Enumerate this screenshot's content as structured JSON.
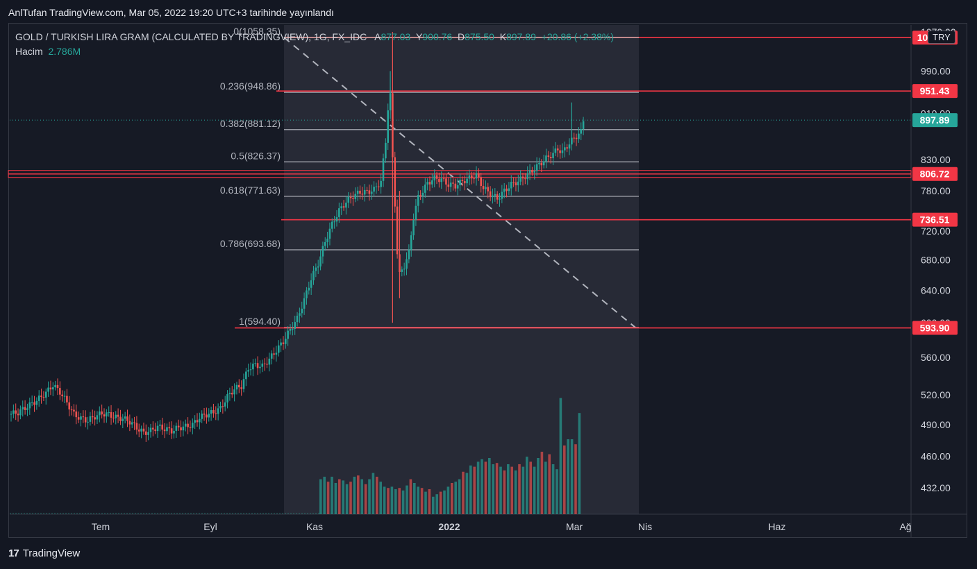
{
  "header": {
    "published_line": "AnlTufan TradingView.com, Mar 05, 2022 19:20 UTC+3 tarihinde yayınlandı"
  },
  "legend": {
    "symbol": "GOLD / TURKISH LIRA GRAM (CALCULATED BY TRADINGVIEW), 1G, FX_IDC",
    "o_label": "A",
    "o_val": "877.03",
    "h_label": "Y",
    "h_val": "900.76",
    "l_label": "D",
    "l_val": "875.50",
    "c_label": "K",
    "c_val": "897.89",
    "change": "+20.86 (+2.38%)",
    "volume_label": "Hacim",
    "volume_val": "2.786M"
  },
  "currency_badge": "TRY",
  "brand": {
    "logo": "17",
    "name": "TradingView"
  },
  "colors": {
    "bg": "#131722",
    "up": "#26a69a",
    "down": "#ef5350",
    "level_red": "#f23645",
    "fib_line": "#9598a1",
    "highlight": "#2a2e39"
  },
  "chart_data": {
    "type": "candlestick",
    "y_scale": "log",
    "ylim": [
      410,
      1085
    ],
    "y_ticks": [
      "432.00",
      "460.00",
      "490.00",
      "520.00",
      "560.00",
      "600.00",
      "640.00",
      "680.00",
      "720.00",
      "780.00",
      "830.00",
      "910.00",
      "990.00",
      "1070.00"
    ],
    "x_ticks": [
      {
        "label": "Tem",
        "bold": false
      },
      {
        "label": "Eyl",
        "bold": false
      },
      {
        "label": "Kas",
        "bold": false
      },
      {
        "label": "2022",
        "bold": true
      },
      {
        "label": "Mar",
        "bold": false
      },
      {
        "label": "Nis",
        "bold": false
      },
      {
        "label": "Haz",
        "bold": false
      },
      {
        "label": "Ağ",
        "bold": false
      }
    ],
    "last_price": "897.89",
    "horizontal_levels": [
      "1058.04",
      "951.43",
      "806.72",
      "736.51",
      "593.90"
    ],
    "fibonacci": [
      {
        "ratio": "0",
        "price": "1058.35",
        "label": "0(1058.35)"
      },
      {
        "ratio": "0.236",
        "price": "948.86",
        "label": "0.236(948.86)"
      },
      {
        "ratio": "0.382",
        "price": "881.12",
        "label": "0.382(881.12)"
      },
      {
        "ratio": "0.5",
        "price": "826.37",
        "label": "0.5(826.37)"
      },
      {
        "ratio": "0.618",
        "price": "771.63",
        "label": "0.618(771.63)"
      },
      {
        "ratio": "0.786",
        "price": "693.68",
        "label": "0.786(693.68)"
      },
      {
        "ratio": "1",
        "price": "594.40",
        "label": "1(594.40)"
      }
    ],
    "price_path": [
      [
        0,
        500
      ],
      [
        4,
        502
      ],
      [
        8,
        508
      ],
      [
        12,
        514
      ],
      [
        16,
        522
      ],
      [
        19,
        530
      ],
      [
        22,
        523
      ],
      [
        25,
        512
      ],
      [
        28,
        500
      ],
      [
        31,
        496
      ],
      [
        34,
        494
      ],
      [
        37,
        498
      ],
      [
        40,
        501
      ],
      [
        43,
        500
      ],
      [
        46,
        497
      ],
      [
        49,
        496
      ],
      [
        52,
        493
      ],
      [
        55,
        487
      ],
      [
        58,
        482
      ],
      [
        61,
        484
      ],
      [
        64,
        488
      ],
      [
        67,
        486
      ],
      [
        70,
        484
      ],
      [
        73,
        487
      ],
      [
        76,
        488
      ],
      [
        79,
        490
      ],
      [
        82,
        497
      ],
      [
        85,
        500
      ],
      [
        88,
        502
      ],
      [
        91,
        506
      ],
      [
        94,
        518
      ],
      [
        97,
        526
      ],
      [
        100,
        529
      ],
      [
        103,
        548
      ],
      [
        106,
        552
      ],
      [
        109,
        550
      ],
      [
        112,
        558
      ],
      [
        115,
        568
      ],
      [
        118,
        578
      ],
      [
        121,
        592
      ],
      [
        124,
        605
      ],
      [
        127,
        628
      ],
      [
        130,
        655
      ],
      [
        133,
        675
      ],
      [
        136,
        705
      ],
      [
        139,
        730
      ],
      [
        142,
        750
      ],
      [
        145,
        763
      ],
      [
        148,
        772
      ],
      [
        151,
        778
      ],
      [
        154,
        778
      ],
      [
        157,
        782
      ],
      [
        160,
        795
      ],
      [
        162,
        860
      ],
      [
        163,
        920
      ],
      [
        164,
        944
      ],
      [
        165,
        830
      ],
      [
        166,
        760
      ],
      [
        167,
        690
      ],
      [
        168,
        660
      ],
      [
        170,
        672
      ],
      [
        172,
        690
      ],
      [
        174,
        740
      ],
      [
        176,
        770
      ],
      [
        178,
        780
      ],
      [
        180,
        792
      ],
      [
        183,
        800
      ],
      [
        186,
        798
      ],
      [
        189,
        790
      ],
      [
        192,
        788
      ],
      [
        195,
        795
      ],
      [
        198,
        800
      ],
      [
        201,
        805
      ],
      [
        204,
        785
      ],
      [
        207,
        775
      ],
      [
        210,
        768
      ],
      [
        213,
        780
      ],
      [
        216,
        790
      ],
      [
        219,
        795
      ],
      [
        222,
        803
      ],
      [
        225,
        812
      ],
      [
        228,
        822
      ],
      [
        231,
        832
      ],
      [
        234,
        840
      ],
      [
        236,
        848
      ],
      [
        238,
        842
      ],
      [
        240,
        853
      ],
      [
        242,
        862
      ],
      [
        244,
        870
      ],
      [
        246,
        877
      ],
      [
        247,
        898
      ]
    ],
    "volume_bars": [
      {
        "u": 1,
        "h": 0.28
      },
      {
        "u": 1,
        "h": 0.3
      },
      {
        "u": 0,
        "h": 0.26
      },
      {
        "u": 1,
        "h": 0.3
      },
      {
        "u": 1,
        "h": 0.25
      },
      {
        "u": 0,
        "h": 0.28
      },
      {
        "u": 1,
        "h": 0.27
      },
      {
        "u": 1,
        "h": 0.24
      },
      {
        "u": 0,
        "h": 0.26
      },
      {
        "u": 1,
        "h": 0.3
      },
      {
        "u": 0,
        "h": 0.31
      },
      {
        "u": 1,
        "h": 0.28
      },
      {
        "u": 0,
        "h": 0.24
      },
      {
        "u": 1,
        "h": 0.28
      },
      {
        "u": 1,
        "h": 0.33
      },
      {
        "u": 0,
        "h": 0.3
      },
      {
        "u": 1,
        "h": 0.26
      },
      {
        "u": 1,
        "h": 0.22
      },
      {
        "u": 0,
        "h": 0.21
      },
      {
        "u": 1,
        "h": 0.22
      },
      {
        "u": 1,
        "h": 0.2
      },
      {
        "u": 0,
        "h": 0.21
      },
      {
        "u": 1,
        "h": 0.19
      },
      {
        "u": 1,
        "h": 0.23
      },
      {
        "u": 0,
        "h": 0.28
      },
      {
        "u": 1,
        "h": 0.25
      },
      {
        "u": 1,
        "h": 0.22
      },
      {
        "u": 0,
        "h": 0.21
      },
      {
        "u": 1,
        "h": 0.18
      },
      {
        "u": 0,
        "h": 0.2
      },
      {
        "u": 1,
        "h": 0.14
      },
      {
        "u": 1,
        "h": 0.16
      },
      {
        "u": 0,
        "h": 0.18
      },
      {
        "u": 1,
        "h": 0.19
      },
      {
        "u": 1,
        "h": 0.22
      },
      {
        "u": 0,
        "h": 0.25
      },
      {
        "u": 1,
        "h": 0.26
      },
      {
        "u": 1,
        "h": 0.28
      },
      {
        "u": 0,
        "h": 0.34
      },
      {
        "u": 1,
        "h": 0.33
      },
      {
        "u": 1,
        "h": 0.39
      },
      {
        "u": 0,
        "h": 0.38
      },
      {
        "u": 1,
        "h": 0.42
      },
      {
        "u": 1,
        "h": 0.44
      },
      {
        "u": 0,
        "h": 0.42
      },
      {
        "u": 1,
        "h": 0.45
      },
      {
        "u": 1,
        "h": 0.4
      },
      {
        "u": 0,
        "h": 0.41
      },
      {
        "u": 1,
        "h": 0.38
      },
      {
        "u": 0,
        "h": 0.35
      },
      {
        "u": 1,
        "h": 0.4
      },
      {
        "u": 0,
        "h": 0.38
      },
      {
        "u": 1,
        "h": 0.35
      },
      {
        "u": 0,
        "h": 0.4
      },
      {
        "u": 1,
        "h": 0.38
      },
      {
        "u": 1,
        "h": 0.46
      },
      {
        "u": 0,
        "h": 0.42
      },
      {
        "u": 1,
        "h": 0.38
      },
      {
        "u": 1,
        "h": 0.45
      },
      {
        "u": 0,
        "h": 0.5
      },
      {
        "u": 1,
        "h": 0.42
      },
      {
        "u": 0,
        "h": 0.48
      },
      {
        "u": 1,
        "h": 0.4
      },
      {
        "u": 1,
        "h": 0.36
      },
      {
        "u": 1,
        "h": 0.93
      },
      {
        "u": 0,
        "h": 0.55
      },
      {
        "u": 1,
        "h": 0.6
      },
      {
        "u": 1,
        "h": 0.6
      },
      {
        "u": 0,
        "h": 0.56
      },
      {
        "u": 1,
        "h": 0.81
      }
    ]
  }
}
